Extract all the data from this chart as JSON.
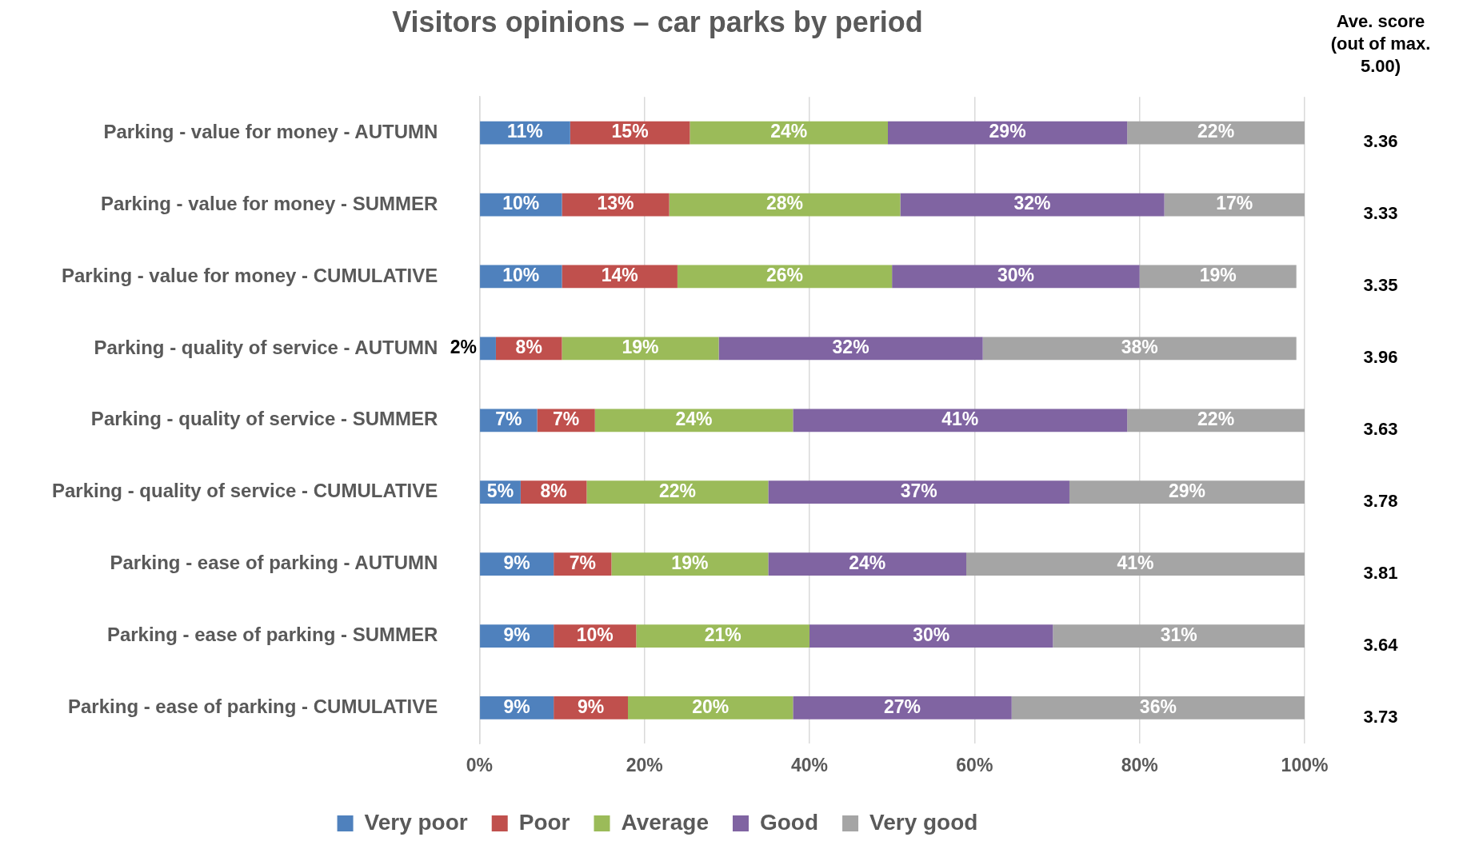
{
  "chart_data": {
    "type": "bar",
    "orientation": "horizontal",
    "stacked": true,
    "title": "Visitors opinions – car parks by period",
    "categories": [
      "Parking - value for money - AUTUMN",
      "Parking - value for money - SUMMER",
      "Parking - value for money - CUMULATIVE",
      "Parking - quality of service - AUTUMN",
      "Parking - quality of service - SUMMER",
      "Parking - quality of service - CUMULATIVE",
      "Parking - ease of parking - AUTUMN",
      "Parking - ease of parking - SUMMER",
      "Parking - ease of parking - CUMULATIVE"
    ],
    "series": [
      {
        "name": "Very poor",
        "color": "#4f81bd",
        "values": [
          11,
          10,
          10,
          2,
          7,
          5,
          9,
          9,
          9
        ],
        "value_labels": [
          "11%",
          "10%",
          "10%",
          "2%",
          "7%",
          "5%",
          "9%",
          "9%",
          "9%"
        ]
      },
      {
        "name": "Poor",
        "color": "#c0504d",
        "values": [
          14.5,
          13,
          14,
          8,
          7,
          8,
          7,
          10,
          9
        ],
        "value_labels": [
          "15%",
          "13%",
          "14%",
          "8%",
          "7%",
          "8%",
          "7%",
          "10%",
          "9%"
        ]
      },
      {
        "name": "Average",
        "color": "#9bbb59",
        "values": [
          24,
          28,
          26,
          19,
          24,
          22,
          19,
          21,
          20
        ],
        "value_labels": [
          "24%",
          "28%",
          "26%",
          "19%",
          "24%",
          "22%",
          "19%",
          "21%",
          "20%"
        ]
      },
      {
        "name": "Good",
        "color": "#8064a2",
        "values": [
          29,
          32,
          30,
          32,
          40.5,
          36.5,
          24,
          29.5,
          26.5
        ],
        "value_labels": [
          "29%",
          "32%",
          "30%",
          "32%",
          "41%",
          "37%",
          "24%",
          "30%",
          "27%"
        ]
      },
      {
        "name": "Very good",
        "color": "#a5a5a5",
        "values": [
          21.5,
          17,
          19,
          38,
          21.5,
          28.5,
          41,
          30.5,
          35.5
        ],
        "value_labels": [
          "22%",
          "17%",
          "19%",
          "38%",
          "22%",
          "29%",
          "41%",
          "31%",
          "36%"
        ]
      }
    ],
    "xlim": [
      0,
      100
    ],
    "xticks": [
      {
        "value": 0,
        "label": "0%"
      },
      {
        "value": 20,
        "label": "20%"
      },
      {
        "value": 40,
        "label": "40%"
      },
      {
        "value": 60,
        "label": "60%"
      },
      {
        "value": 80,
        "label": "80%"
      },
      {
        "value": 100,
        "label": "100%"
      }
    ],
    "grid": "x",
    "legend": "bottom",
    "annotations": [
      "Ave. score (out of max. 5.00)",
      "3.36",
      "3.33",
      "3.35",
      "3.96",
      "3.63",
      "3.78",
      "3.81",
      "3.64",
      "3.73"
    ]
  }
}
